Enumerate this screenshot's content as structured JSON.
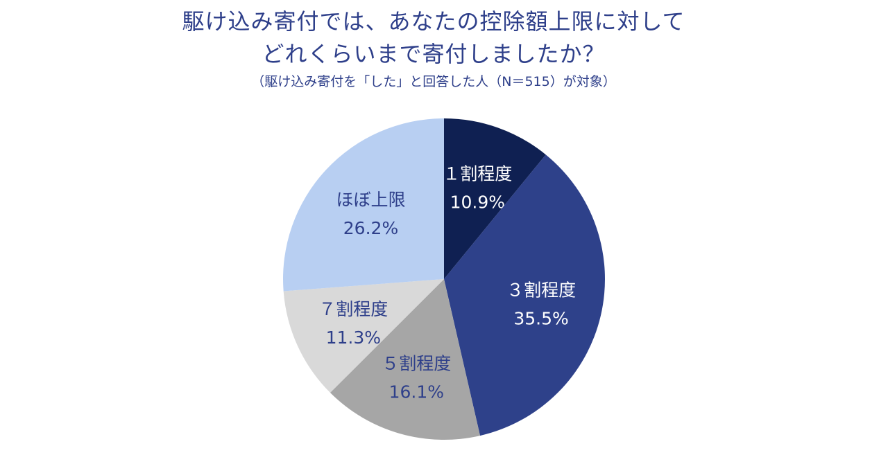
{
  "chart_data": {
    "type": "pie",
    "title_lines": [
      "駆け込み寄付では、あなたの控除額上限に対して",
      "どれくらいまで寄付しましたか？"
    ],
    "subtitle": "（駆け込み寄付を「した」と回答した人（N＝515）が対象）",
    "slices": [
      {
        "label": "１割程度",
        "value": 10.9,
        "value_label": "10.9%",
        "color": "#0f2052",
        "text_color": "#ffffff"
      },
      {
        "label": "３割程度",
        "value": 35.5,
        "value_label": "35.5%",
        "color": "#2e418a",
        "text_color": "#ffffff"
      },
      {
        "label": "５割程度",
        "value": 16.1,
        "value_label": "16.1%",
        "color": "#a6a6a6",
        "text_color": "#2e3f8a"
      },
      {
        "label": "７割程度",
        "value": 11.3,
        "value_label": "11.3%",
        "color": "#d9d9d9",
        "text_color": "#2e3f8a"
      },
      {
        "label": "ほぼ上限",
        "value": 26.2,
        "value_label": "26.2%",
        "color": "#b8cff2",
        "text_color": "#2e3f8a"
      }
    ],
    "start_angle": "12 o'clock",
    "direction": "clockwise",
    "legend": "none"
  }
}
